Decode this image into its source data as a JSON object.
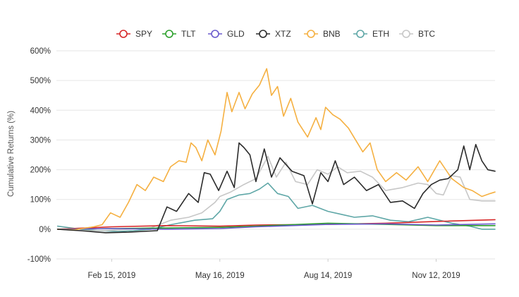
{
  "chart_data": {
    "type": "line",
    "ylabel": "Cumulative Returns (%)",
    "ylim": [
      -100,
      600
    ],
    "xlim": [
      "2018-12-31",
      "2019-12-31"
    ],
    "yticks": [
      -100,
      0,
      100,
      200,
      300,
      400,
      500,
      600
    ],
    "ytick_labels": [
      "-100%",
      "0%",
      "100%",
      "200%",
      "300%",
      "400%",
      "500%",
      "600%"
    ],
    "xticks": [
      "2019-02-15",
      "2019-05-16",
      "2019-08-14",
      "2019-11-12"
    ],
    "xtick_labels": [
      "Feb 15, 2019",
      "May 16, 2019",
      "Aug 14, 2019",
      "Nov 12, 2019"
    ],
    "grid": true,
    "legend_position": "top",
    "series": [
      {
        "name": "SPY",
        "color": "#d62728",
        "points": [
          [
            "2019-01-01",
            0
          ],
          [
            "2019-02-15",
            8
          ],
          [
            "2019-04-01",
            12
          ],
          [
            "2019-05-16",
            10
          ],
          [
            "2019-06-15",
            14
          ],
          [
            "2019-08-14",
            16
          ],
          [
            "2019-10-01",
            20
          ],
          [
            "2019-11-12",
            26
          ],
          [
            "2019-12-31",
            32
          ]
        ]
      },
      {
        "name": "TLT",
        "color": "#2ca02c",
        "points": [
          [
            "2019-01-01",
            0
          ],
          [
            "2019-02-15",
            2
          ],
          [
            "2019-04-01",
            4
          ],
          [
            "2019-05-16",
            6
          ],
          [
            "2019-06-15",
            10
          ],
          [
            "2019-08-14",
            20
          ],
          [
            "2019-10-01",
            16
          ],
          [
            "2019-11-12",
            12
          ],
          [
            "2019-12-31",
            12
          ]
        ]
      },
      {
        "name": "GLD",
        "color": "#6a5acd",
        "points": [
          [
            "2019-01-01",
            0
          ],
          [
            "2019-02-15",
            2
          ],
          [
            "2019-04-01",
            0
          ],
          [
            "2019-05-16",
            2
          ],
          [
            "2019-06-15",
            8
          ],
          [
            "2019-08-14",
            16
          ],
          [
            "2019-10-01",
            18
          ],
          [
            "2019-11-12",
            14
          ],
          [
            "2019-12-31",
            18
          ]
        ]
      },
      {
        "name": "XTZ",
        "color": "#2b2b2b",
        "points": [
          [
            "2019-01-01",
            0
          ],
          [
            "2019-01-20",
            -5
          ],
          [
            "2019-02-10",
            -12
          ],
          [
            "2019-03-01",
            -10
          ],
          [
            "2019-03-25",
            -5
          ],
          [
            "2019-04-02",
            75
          ],
          [
            "2019-04-10",
            60
          ],
          [
            "2019-04-20",
            120
          ],
          [
            "2019-04-28",
            90
          ],
          [
            "2019-05-03",
            190
          ],
          [
            "2019-05-08",
            185
          ],
          [
            "2019-05-15",
            130
          ],
          [
            "2019-05-22",
            195
          ],
          [
            "2019-05-28",
            140
          ],
          [
            "2019-06-01",
            290
          ],
          [
            "2019-06-05",
            275
          ],
          [
            "2019-06-10",
            250
          ],
          [
            "2019-06-15",
            160
          ],
          [
            "2019-06-22",
            270
          ],
          [
            "2019-06-28",
            175
          ],
          [
            "2019-07-05",
            240
          ],
          [
            "2019-07-15",
            195
          ],
          [
            "2019-07-25",
            180
          ],
          [
            "2019-08-01",
            85
          ],
          [
            "2019-08-08",
            190
          ],
          [
            "2019-08-14",
            160
          ],
          [
            "2019-08-20",
            230
          ],
          [
            "2019-08-27",
            150
          ],
          [
            "2019-09-05",
            175
          ],
          [
            "2019-09-15",
            130
          ],
          [
            "2019-09-25",
            150
          ],
          [
            "2019-10-05",
            90
          ],
          [
            "2019-10-15",
            95
          ],
          [
            "2019-10-25",
            70
          ],
          [
            "2019-11-01",
            120
          ],
          [
            "2019-11-08",
            150
          ],
          [
            "2019-11-15",
            165
          ],
          [
            "2019-11-22",
            170
          ],
          [
            "2019-11-30",
            200
          ],
          [
            "2019-12-05",
            280
          ],
          [
            "2019-12-10",
            200
          ],
          [
            "2019-12-15",
            285
          ],
          [
            "2019-12-20",
            230
          ],
          [
            "2019-12-25",
            200
          ],
          [
            "2019-12-31",
            195
          ]
        ]
      },
      {
        "name": "BNB",
        "color": "#f5b041",
        "points": [
          [
            "2019-01-01",
            0
          ],
          [
            "2019-01-15",
            -2
          ],
          [
            "2019-01-31",
            8
          ],
          [
            "2019-02-07",
            15
          ],
          [
            "2019-02-14",
            55
          ],
          [
            "2019-02-22",
            40
          ],
          [
            "2019-03-01",
            90
          ],
          [
            "2019-03-08",
            150
          ],
          [
            "2019-03-15",
            130
          ],
          [
            "2019-03-22",
            175
          ],
          [
            "2019-03-30",
            160
          ],
          [
            "2019-04-05",
            210
          ],
          [
            "2019-04-12",
            230
          ],
          [
            "2019-04-18",
            225
          ],
          [
            "2019-04-22",
            290
          ],
          [
            "2019-04-26",
            275
          ],
          [
            "2019-05-01",
            230
          ],
          [
            "2019-05-06",
            300
          ],
          [
            "2019-05-12",
            250
          ],
          [
            "2019-05-17",
            330
          ],
          [
            "2019-05-22",
            460
          ],
          [
            "2019-05-26",
            395
          ],
          [
            "2019-06-01",
            460
          ],
          [
            "2019-06-06",
            405
          ],
          [
            "2019-06-12",
            455
          ],
          [
            "2019-06-18",
            485
          ],
          [
            "2019-06-24",
            540
          ],
          [
            "2019-06-28",
            450
          ],
          [
            "2019-07-03",
            480
          ],
          [
            "2019-07-08",
            380
          ],
          [
            "2019-07-14",
            440
          ],
          [
            "2019-07-20",
            360
          ],
          [
            "2019-07-28",
            310
          ],
          [
            "2019-08-04",
            375
          ],
          [
            "2019-08-08",
            335
          ],
          [
            "2019-08-12",
            410
          ],
          [
            "2019-08-18",
            385
          ],
          [
            "2019-08-24",
            370
          ],
          [
            "2019-08-31",
            340
          ],
          [
            "2019-09-06",
            300
          ],
          [
            "2019-09-12",
            260
          ],
          [
            "2019-09-18",
            290
          ],
          [
            "2019-09-24",
            200
          ],
          [
            "2019-10-01",
            160
          ],
          [
            "2019-10-10",
            190
          ],
          [
            "2019-10-18",
            165
          ],
          [
            "2019-10-28",
            210
          ],
          [
            "2019-11-05",
            160
          ],
          [
            "2019-11-15",
            230
          ],
          [
            "2019-11-25",
            170
          ],
          [
            "2019-12-05",
            140
          ],
          [
            "2019-12-12",
            130
          ],
          [
            "2019-12-20",
            110
          ],
          [
            "2019-12-27",
            120
          ],
          [
            "2019-12-31",
            125
          ]
        ]
      },
      {
        "name": "ETH",
        "color": "#5fa7a7",
        "points": [
          [
            "2019-01-01",
            10
          ],
          [
            "2019-01-20",
            0
          ],
          [
            "2019-02-05",
            -5
          ],
          [
            "2019-02-20",
            -8
          ],
          [
            "2019-03-05",
            -5
          ],
          [
            "2019-03-20",
            0
          ],
          [
            "2019-04-05",
            15
          ],
          [
            "2019-04-25",
            30
          ],
          [
            "2019-05-10",
            35
          ],
          [
            "2019-05-16",
            60
          ],
          [
            "2019-05-22",
            100
          ],
          [
            "2019-06-01",
            115
          ],
          [
            "2019-06-10",
            120
          ],
          [
            "2019-06-18",
            135
          ],
          [
            "2019-06-25",
            155
          ],
          [
            "2019-07-03",
            120
          ],
          [
            "2019-07-12",
            110
          ],
          [
            "2019-07-20",
            70
          ],
          [
            "2019-08-01",
            80
          ],
          [
            "2019-08-14",
            60
          ],
          [
            "2019-08-25",
            50
          ],
          [
            "2019-09-05",
            40
          ],
          [
            "2019-09-20",
            45
          ],
          [
            "2019-10-05",
            30
          ],
          [
            "2019-10-20",
            25
          ],
          [
            "2019-11-05",
            40
          ],
          [
            "2019-11-15",
            30
          ],
          [
            "2019-11-25",
            20
          ],
          [
            "2019-12-10",
            10
          ],
          [
            "2019-12-20",
            0
          ],
          [
            "2019-12-31",
            0
          ]
        ]
      },
      {
        "name": "BTC",
        "color": "#c7c7c7",
        "points": [
          [
            "2019-01-01",
            0
          ],
          [
            "2019-01-20",
            -5
          ],
          [
            "2019-02-10",
            -5
          ],
          [
            "2019-03-01",
            0
          ],
          [
            "2019-03-20",
            5
          ],
          [
            "2019-04-05",
            30
          ],
          [
            "2019-04-20",
            40
          ],
          [
            "2019-05-01",
            55
          ],
          [
            "2019-05-12",
            90
          ],
          [
            "2019-05-16",
            110
          ],
          [
            "2019-05-25",
            125
          ],
          [
            "2019-06-05",
            150
          ],
          [
            "2019-06-15",
            170
          ],
          [
            "2019-06-25",
            245
          ],
          [
            "2019-07-02",
            175
          ],
          [
            "2019-07-10",
            225
          ],
          [
            "2019-07-18",
            160
          ],
          [
            "2019-07-28",
            150
          ],
          [
            "2019-08-05",
            200
          ],
          [
            "2019-08-14",
            185
          ],
          [
            "2019-08-22",
            210
          ],
          [
            "2019-08-30",
            190
          ],
          [
            "2019-09-10",
            195
          ],
          [
            "2019-09-20",
            175
          ],
          [
            "2019-10-01",
            130
          ],
          [
            "2019-10-15",
            140
          ],
          [
            "2019-10-28",
            155
          ],
          [
            "2019-11-05",
            150
          ],
          [
            "2019-11-12",
            120
          ],
          [
            "2019-11-18",
            115
          ],
          [
            "2019-11-25",
            180
          ],
          [
            "2019-12-02",
            175
          ],
          [
            "2019-12-10",
            100
          ],
          [
            "2019-12-20",
            95
          ],
          [
            "2019-12-31",
            95
          ]
        ]
      }
    ]
  }
}
